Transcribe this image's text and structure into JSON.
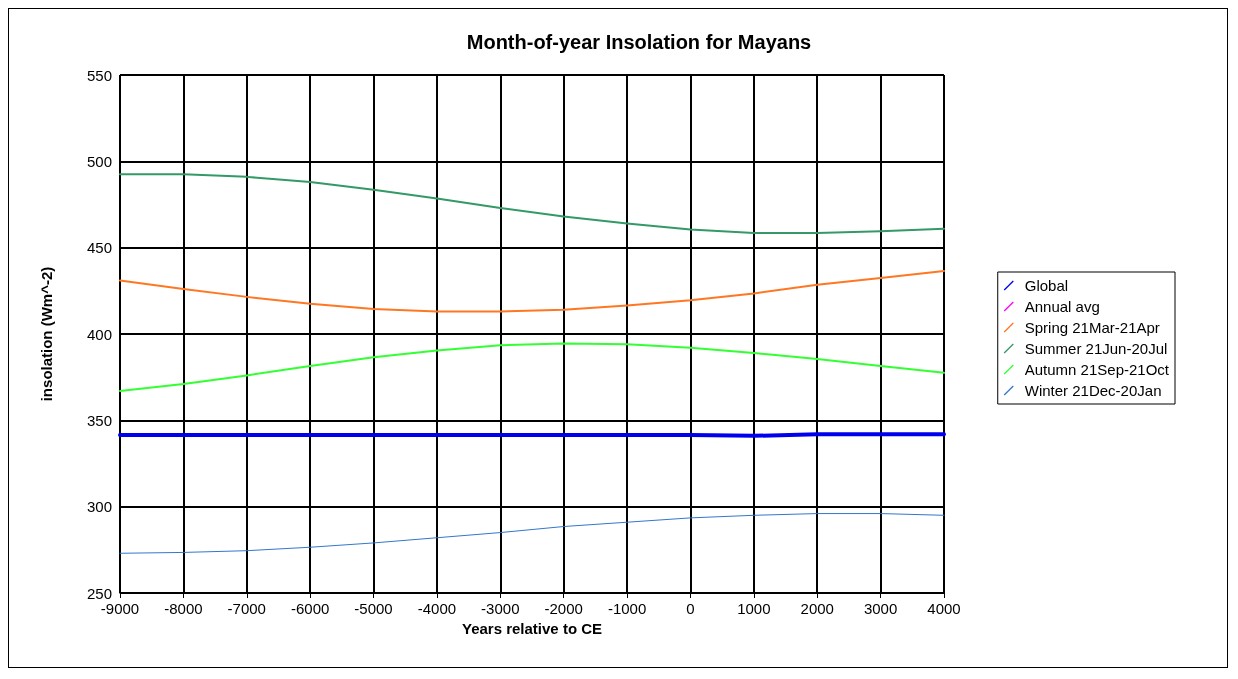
{
  "chart_data": {
    "type": "line",
    "title": "Month-of-year Insolation for Mayans",
    "xlabel": "Years relative to CE",
    "ylabel": "insolation (Wm^-2)",
    "x": [
      -9000,
      -8000,
      -7000,
      -6000,
      -5000,
      -4000,
      -3000,
      -2000,
      -1000,
      0,
      1000,
      2000,
      3000,
      4000
    ],
    "xlim": [
      -9000,
      4000
    ],
    "xticks": [
      -9000,
      -8000,
      -7000,
      -6000,
      -5000,
      -4000,
      -3000,
      -2000,
      -1000,
      0,
      1000,
      2000,
      3000,
      4000
    ],
    "ylim": [
      250,
      550
    ],
    "yticks": [
      250,
      300,
      350,
      400,
      450,
      500,
      550
    ],
    "grid": true,
    "legend": "right",
    "marker": "none",
    "line_style": "solid",
    "series": [
      {
        "name": "Global",
        "color": "#0000ee",
        "values": [
          341.5,
          341.5,
          341.5,
          341.5,
          341.5,
          341.5,
          341.5,
          341.5,
          341.5,
          341.5,
          341,
          342,
          342,
          342
        ]
      },
      {
        "name": "Annual avg",
        "color": "#ff00ff",
        "values": [
          null,
          null,
          null,
          null,
          null,
          null,
          null,
          null,
          null,
          null,
          null,
          null,
          null,
          null
        ]
      },
      {
        "name": "Spring 21Mar-21Apr",
        "color": "#ff7722",
        "values": [
          431,
          426,
          421.5,
          417.5,
          414.5,
          413,
          413,
          414,
          416.5,
          419.5,
          423.5,
          428.5,
          432.5,
          436.5
        ]
      },
      {
        "name": "Summer 21Jun-20Jul",
        "color": "#339966",
        "values": [
          492.5,
          492.5,
          491,
          488,
          483.5,
          478.5,
          473,
          468,
          464,
          460.5,
          458.5,
          458.5,
          459.5,
          461
        ]
      },
      {
        "name": "Autumn 21Sep-21Oct",
        "color": "#33ff33",
        "values": [
          367,
          371,
          376,
          381.5,
          386.5,
          390.5,
          393.5,
          394.5,
          394,
          392,
          389,
          385.5,
          381.5,
          377.5
        ]
      },
      {
        "name": "Winter 21Dec-20Jan",
        "color": "#3377cc",
        "values": [
          273,
          273.5,
          274.5,
          276.5,
          279,
          282,
          285,
          288.5,
          291,
          293.5,
          295,
          296,
          296,
          295
        ]
      }
    ]
  }
}
